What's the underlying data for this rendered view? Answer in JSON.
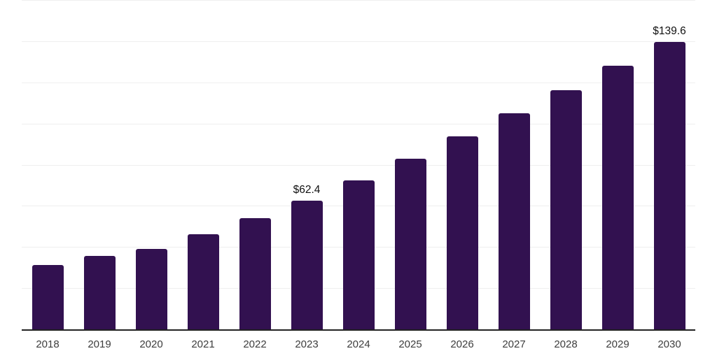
{
  "chart_data": {
    "type": "bar",
    "title": "",
    "xlabel": "",
    "ylabel": "",
    "categories": [
      "2018",
      "2019",
      "2020",
      "2021",
      "2022",
      "2023",
      "2024",
      "2025",
      "2026",
      "2027",
      "2028",
      "2029",
      "2030"
    ],
    "values": [
      31.1,
      35.5,
      39.2,
      46.3,
      54.0,
      62.4,
      72.3,
      82.8,
      93.6,
      105.1,
      116.2,
      128.0,
      139.6
    ],
    "data_labels": [
      {
        "category": "2023",
        "text": "$62.4"
      },
      {
        "category": "2030",
        "text": "$139.6"
      }
    ],
    "ylim": [
      0,
      160
    ],
    "grid_step": 20,
    "grid": true,
    "legend": "none",
    "colors": {
      "bar": "#321150",
      "axis_line": "#222222",
      "gridline": "#efefef",
      "tick_label": "#3d3d3d",
      "data_label": "#111111",
      "background": "#ffffff"
    }
  }
}
